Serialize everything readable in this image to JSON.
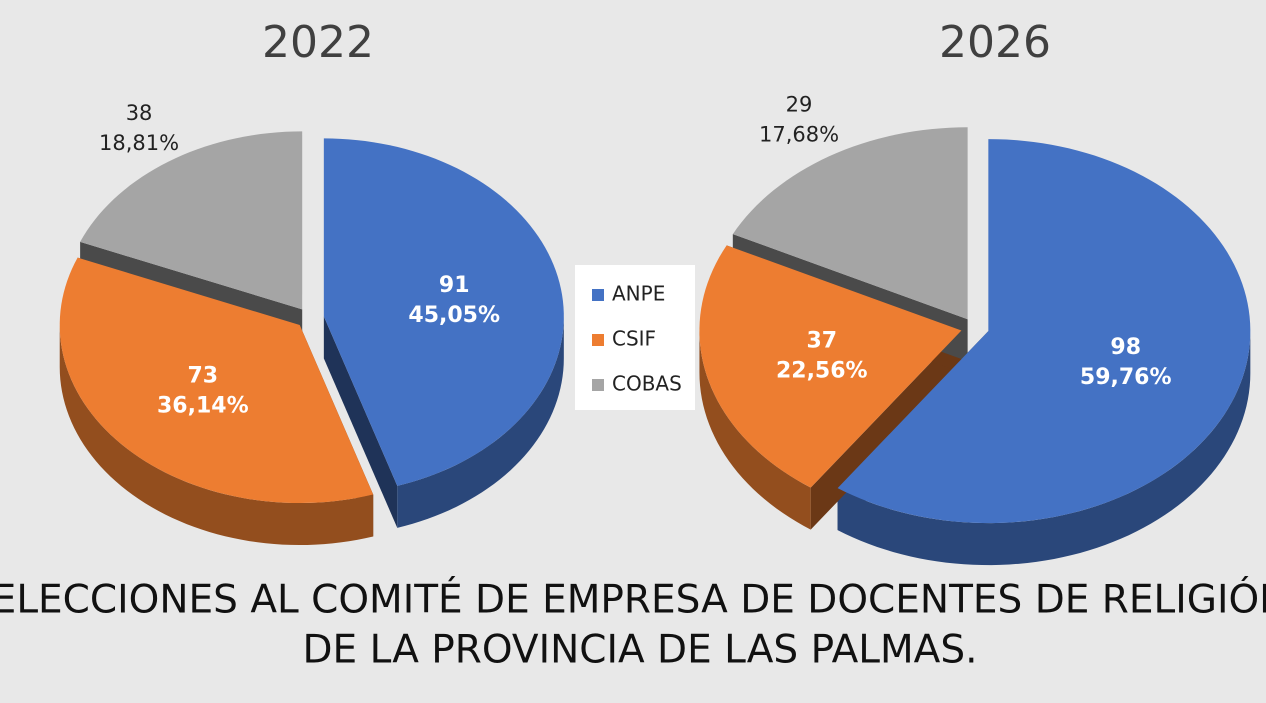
{
  "chart_data": [
    {
      "type": "pie",
      "title": "2022",
      "categories": [
        "ANPE",
        "CSIF",
        "COBAS"
      ],
      "values": [
        91,
        73,
        38
      ],
      "percent_values": [
        45.05,
        36.14,
        18.81
      ],
      "percent_labels": [
        "45,05%",
        "36,14%",
        "18,81%"
      ],
      "colors": [
        "#4472c4",
        "#ed7d31",
        "#a5a5a5"
      ],
      "legend": "center"
    },
    {
      "type": "pie",
      "title": "2026",
      "categories": [
        "ANPE",
        "CSIF",
        "COBAS"
      ],
      "values": [
        98,
        37,
        29
      ],
      "percent_values": [
        59.76,
        22.56,
        17.68
      ],
      "percent_labels": [
        "59,76%",
        "22,56%",
        "17,68%"
      ],
      "colors": [
        "#4472c4",
        "#ed7d31",
        "#a5a5a5"
      ],
      "legend": "center"
    }
  ],
  "caption": [
    "ELECCIONES AL COMITÉ DE EMPRESA DE DOCENTES DE RELIGIÓN",
    "DE LA PROVINCIA DE LAS PALMAS."
  ]
}
